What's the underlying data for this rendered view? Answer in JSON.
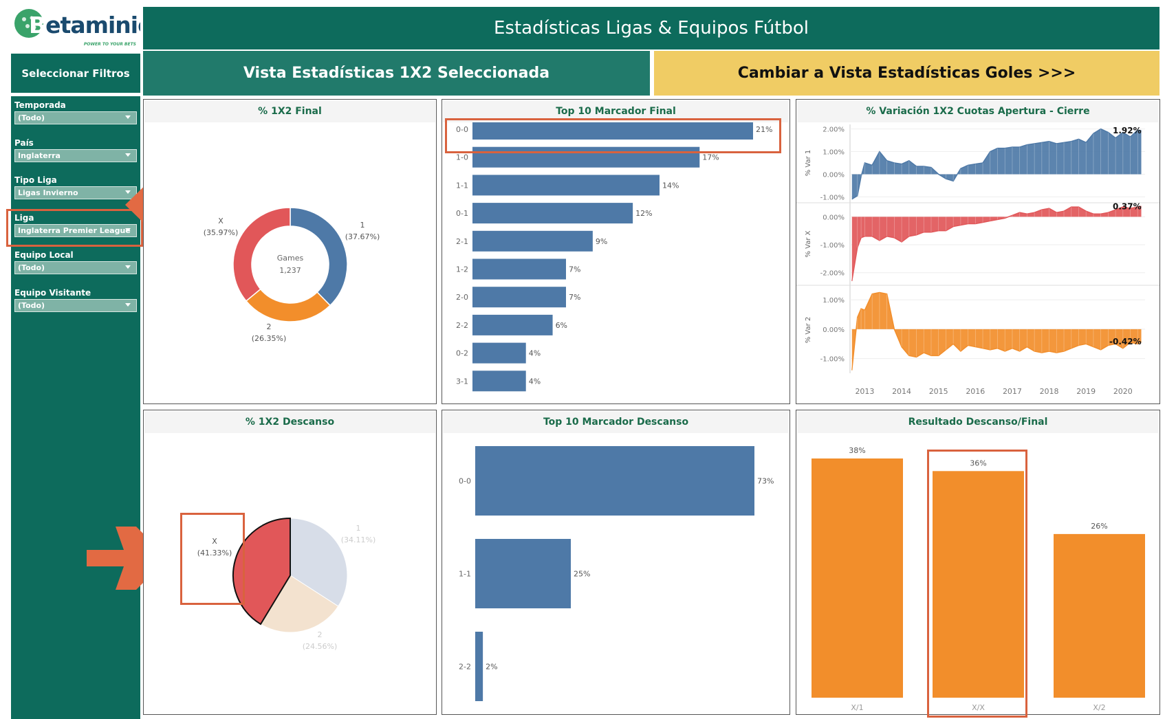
{
  "header": {
    "logo_text": "Betaminic",
    "logo_tagline": "POWER TO YOUR BETS",
    "title": "Estadísticas Ligas & Equipos Fútbol",
    "view_current": "Vista Estadísticas 1X2 Seleccionada",
    "view_switch": "Cambiar a Vista Estadísticas Goles >>>"
  },
  "sidebar": {
    "title": "Seleccionar Filtros",
    "filters": [
      {
        "label": "Temporada",
        "value": "(Todo)"
      },
      {
        "label": "País",
        "value": "Inglaterra"
      },
      {
        "label": "Tipo Liga",
        "value": "Ligas Invierno"
      },
      {
        "label": "Liga",
        "value": "Inglaterra Premier League"
      },
      {
        "label": "Equipo Local",
        "value": "(Todo)"
      },
      {
        "label": "Equipo Visitante",
        "value": "(Todo)"
      }
    ]
  },
  "colors": {
    "teal": "#0d6b5c",
    "blue": "#4e79a7",
    "red": "#e15759",
    "orange": "#f28e2b",
    "yellow": "#f0cc64",
    "highlight": "#d9623e"
  },
  "panels": {
    "p1": "% 1X2 Final",
    "p2": "Top 10 Marcador Final",
    "p3": "% Variación 1X2 Cuotas Apertura - Cierre",
    "p4": "% 1X2 Descanso",
    "p5": "Top 10 Marcador Descanso",
    "p6": "Resultado Descanso/Final"
  },
  "chart_data": [
    {
      "type": "pie",
      "donut": true,
      "title": "% 1X2 Final",
      "center_label": "Games",
      "center_value": "1,237",
      "slices": [
        {
          "label": "1",
          "pct_label": "(37.67%)",
          "value": 37.67,
          "color": "#4e79a7"
        },
        {
          "label": "2",
          "pct_label": "(26.35%)",
          "value": 26.35,
          "color": "#f28e2b"
        },
        {
          "label": "X",
          "pct_label": "(35.97%)",
          "value": 35.97,
          "color": "#e15759"
        }
      ]
    },
    {
      "type": "bar",
      "orientation": "horizontal",
      "title": "Top 10 Marcador Final",
      "categories": [
        "0-0",
        "1-0",
        "1-1",
        "0-1",
        "2-1",
        "1-2",
        "2-0",
        "2-2",
        "0-2",
        "3-1"
      ],
      "values": [
        21,
        17,
        14,
        12,
        9,
        7,
        7,
        6,
        4,
        4
      ],
      "value_labels": [
        "21%",
        "17%",
        "14%",
        "12%",
        "9%",
        "7%",
        "7%",
        "6%",
        "4%",
        "4%"
      ]
    },
    {
      "type": "area",
      "title": "% Variación 1X2 Cuotas Apertura - Cierre",
      "x_ticks": [
        "2013",
        "2014",
        "2015",
        "2016",
        "2017",
        "2018",
        "2019",
        "2020"
      ],
      "xlim": [
        2012.6,
        2020.6
      ],
      "series": [
        {
          "name": "% Var 1",
          "color": "#4e79a7",
          "last_label": "1.92%",
          "ylim": [
            -1.2,
            2.2
          ],
          "y_ticks": [
            2,
            1,
            0,
            -1
          ],
          "y_tick_labels": [
            "2.00%",
            "1.00%",
            "0.00%",
            "-1.00%"
          ],
          "x": [
            2012.65,
            2012.8,
            2012.9,
            2013.0,
            2013.2,
            2013.4,
            2013.6,
            2013.8,
            2014.0,
            2014.2,
            2014.4,
            2014.6,
            2014.8,
            2015.0,
            2015.2,
            2015.4,
            2015.6,
            2015.8,
            2016.0,
            2016.2,
            2016.4,
            2016.6,
            2016.8,
            2017.0,
            2017.2,
            2017.4,
            2017.6,
            2017.8,
            2018.0,
            2018.2,
            2018.4,
            2018.6,
            2018.8,
            2019.0,
            2019.2,
            2019.4,
            2019.6,
            2019.8,
            2020.0,
            2020.2,
            2020.4,
            2020.5
          ],
          "values": [
            -1.1,
            -0.95,
            -0.1,
            0.5,
            0.4,
            1.0,
            0.6,
            0.5,
            0.45,
            0.6,
            0.35,
            0.35,
            0.3,
            0.0,
            -0.2,
            -0.3,
            0.25,
            0.4,
            0.45,
            0.5,
            1.0,
            1.15,
            1.15,
            1.2,
            1.2,
            1.3,
            1.35,
            1.4,
            1.45,
            1.35,
            1.4,
            1.45,
            1.55,
            1.4,
            1.8,
            2.0,
            1.85,
            1.6,
            1.85,
            1.65,
            1.95,
            1.92
          ]
        },
        {
          "name": "% Var X",
          "color": "#e15759",
          "last_label": "0.37%",
          "ylim": [
            -2.4,
            0.45
          ],
          "y_ticks": [
            0,
            -1,
            -2
          ],
          "y_tick_labels": [
            "0.00%",
            "-1.00%",
            "-2.00%"
          ],
          "x": [
            2012.65,
            2012.8,
            2012.9,
            2013.0,
            2013.2,
            2013.4,
            2013.6,
            2013.8,
            2014.0,
            2014.2,
            2014.4,
            2014.6,
            2014.8,
            2015.0,
            2015.2,
            2015.4,
            2015.6,
            2015.8,
            2016.0,
            2016.2,
            2016.4,
            2016.6,
            2016.8,
            2017.0,
            2017.2,
            2017.4,
            2017.6,
            2017.8,
            2018.0,
            2018.2,
            2018.4,
            2018.6,
            2018.8,
            2019.0,
            2019.2,
            2019.4,
            2019.6,
            2019.8,
            2020.0,
            2020.2,
            2020.4,
            2020.5
          ],
          "values": [
            -2.3,
            -1.1,
            -0.75,
            -0.7,
            -0.7,
            -0.85,
            -0.7,
            -0.75,
            -0.9,
            -0.7,
            -0.65,
            -0.55,
            -0.55,
            -0.5,
            -0.5,
            -0.35,
            -0.3,
            -0.25,
            -0.25,
            -0.2,
            -0.15,
            -0.1,
            -0.05,
            0.05,
            0.15,
            0.1,
            0.15,
            0.25,
            0.3,
            0.15,
            0.2,
            0.35,
            0.35,
            0.2,
            0.1,
            0.1,
            0.15,
            0.25,
            0.35,
            0.3,
            0.35,
            0.37
          ]
        },
        {
          "name": "% Var 2",
          "color": "#f28e2b",
          "last_label": "-0.42%",
          "ylim": [
            -1.5,
            1.45
          ],
          "y_ticks": [
            1,
            0,
            -1
          ],
          "y_tick_labels": [
            "1.00%",
            "0.00%",
            "-1.00%"
          ],
          "x": [
            2012.65,
            2012.8,
            2012.9,
            2013.0,
            2013.2,
            2013.4,
            2013.6,
            2013.8,
            2014.0,
            2014.2,
            2014.4,
            2014.6,
            2014.8,
            2015.0,
            2015.2,
            2015.4,
            2015.6,
            2015.8,
            2016.0,
            2016.2,
            2016.4,
            2016.6,
            2016.8,
            2017.0,
            2017.2,
            2017.4,
            2017.6,
            2017.8,
            2018.0,
            2018.2,
            2018.4,
            2018.6,
            2018.8,
            2019.0,
            2019.2,
            2019.4,
            2019.6,
            2019.8,
            2020.0,
            2020.2,
            2020.4,
            2020.5
          ],
          "values": [
            -1.4,
            0.4,
            0.7,
            0.65,
            1.2,
            1.25,
            1.2,
            0.0,
            -0.6,
            -0.9,
            -0.95,
            -0.8,
            -0.9,
            -0.9,
            -0.7,
            -0.5,
            -0.75,
            -0.55,
            -0.6,
            -0.65,
            -0.7,
            -0.65,
            -0.75,
            -0.65,
            -0.75,
            -0.6,
            -0.75,
            -0.8,
            -0.75,
            -0.8,
            -0.75,
            -0.65,
            -0.55,
            -0.5,
            -0.6,
            -0.7,
            -0.55,
            -0.5,
            -0.65,
            -0.45,
            -0.5,
            -0.42
          ]
        }
      ]
    },
    {
      "type": "pie",
      "title": "% 1X2 Descanso",
      "slices": [
        {
          "label": "1",
          "pct_label": "(34.11%)",
          "value": 34.11,
          "color": "#d7dde8"
        },
        {
          "label": "2",
          "pct_label": "(24.56%)",
          "value": 24.56,
          "color": "#f3e2cf"
        },
        {
          "label": "X",
          "pct_label": "(41.33%)",
          "value": 41.33,
          "color": "#e15759",
          "selected": true
        }
      ]
    },
    {
      "type": "bar",
      "orientation": "horizontal",
      "title": "Top 10 Marcador Descanso",
      "categories": [
        "0-0",
        "1-1",
        "2-2"
      ],
      "values": [
        73,
        25,
        2
      ],
      "value_labels": [
        "73%",
        "25%",
        "2%"
      ]
    },
    {
      "type": "bar",
      "orientation": "vertical",
      "title": "Resultado Descanso/Final",
      "categories": [
        "X/1",
        "X/X",
        "X/2"
      ],
      "values": [
        38,
        36,
        26
      ],
      "value_labels": [
        "38%",
        "36%",
        "26%"
      ]
    }
  ]
}
